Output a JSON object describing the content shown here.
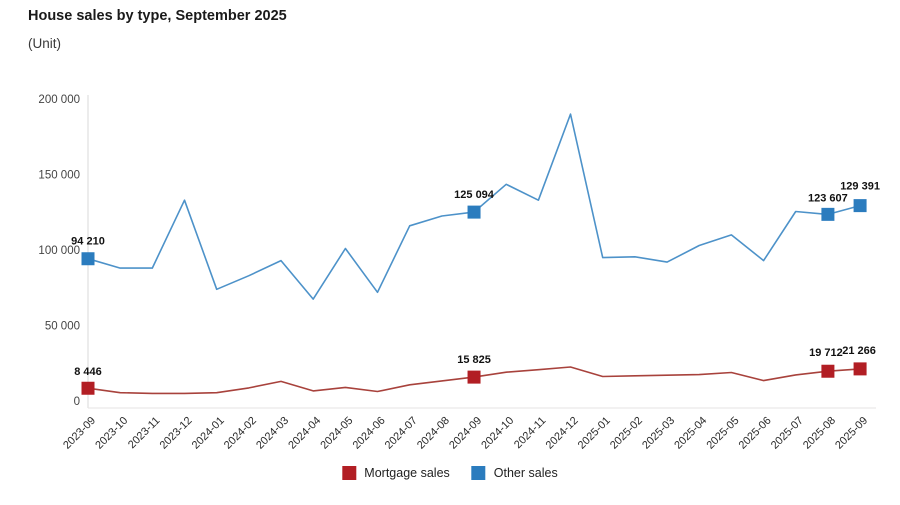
{
  "header": {
    "title": "House sales by type, September 2025",
    "unit": "(Unit)"
  },
  "legend": [
    {
      "name": "Mortgage sales",
      "color": "#b21e24"
    },
    {
      "name": "Other sales",
      "color": "#2b7cbe"
    }
  ],
  "chart_data": {
    "type": "line",
    "title": "House sales by type, September 2025",
    "ylabel": "(Unit)",
    "ylim": [
      0,
      200000
    ],
    "grid": false,
    "legend_position": "bottom",
    "y_ticks": [
      {
        "value": 0,
        "label": "0"
      },
      {
        "value": 50000,
        "label": "50 000"
      },
      {
        "value": 100000,
        "label": "100 000"
      },
      {
        "value": 150000,
        "label": "150 000"
      },
      {
        "value": 200000,
        "label": "200 000"
      }
    ],
    "categories": [
      "2023-09",
      "2023-10",
      "2023-11",
      "2023-12",
      "2024-01",
      "2024-02",
      "2024-03",
      "2024-04",
      "2024-05",
      "2024-06",
      "2024-07",
      "2024-08",
      "2024-09",
      "2024-10",
      "2024-11",
      "2024-12",
      "2025-01",
      "2025-02",
      "2025-03",
      "2025-04",
      "2025-05",
      "2025-06",
      "2025-07",
      "2025-08",
      "2025-09"
    ],
    "series": [
      {
        "name": "Mortgage sales",
        "line_color": "#a8423c",
        "marker_color": "#b21e24",
        "values": [
          8446,
          5500,
          5000,
          5000,
          5500,
          8700,
          13000,
          6700,
          9000,
          6300,
          10700,
          13300,
          15825,
          19100,
          20700,
          22500,
          16200,
          16700,
          17100,
          17500,
          18900,
          13500,
          17300,
          19712,
          21266
        ],
        "point_labels": [
          {
            "index": 0,
            "label": "8 446"
          },
          {
            "index": 12,
            "label": "15 825"
          },
          {
            "index": 23,
            "label": "19 712"
          },
          {
            "index": 24,
            "label": "21 266"
          }
        ]
      },
      {
        "name": "Other sales",
        "line_color": "#4d92c9",
        "marker_color": "#2b7cbe",
        "values": [
          94210,
          88000,
          88000,
          133000,
          74000,
          83000,
          93000,
          67500,
          101000,
          72000,
          116000,
          122500,
          125094,
          143500,
          133000,
          190000,
          95000,
          95500,
          92000,
          103000,
          110000,
          93000,
          125500,
          123607,
          129391
        ],
        "point_labels": [
          {
            "index": 0,
            "label": "94 210"
          },
          {
            "index": 12,
            "label": "125 094"
          },
          {
            "index": 23,
            "label": "123 607"
          },
          {
            "index": 24,
            "label": "129 391"
          }
        ]
      }
    ]
  }
}
